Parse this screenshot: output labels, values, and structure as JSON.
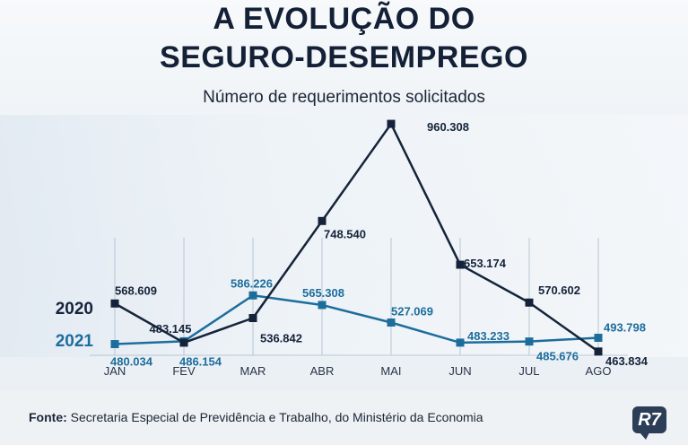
{
  "header": {
    "title_line1": "A EVOLUÇÃO DO",
    "title_line2": "SEGURO-DESEMPREGO",
    "subtitle": "Número de requerimentos solicitados"
  },
  "footer": {
    "source_label": "Fonte:",
    "source_text": "Secretaria Especial de Previdência e Trabalho, do Ministério da Economia",
    "logo_text": "R7"
  },
  "colors": {
    "series_2020": "#15233a",
    "series_2021": "#1d6d9c",
    "grid": "#b8c6d4"
  },
  "chart_data": {
    "type": "line",
    "title": "A EVOLUÇÃO DO SEGURO-DESEMPREGO",
    "subtitle": "Número de requerimentos solicitados",
    "xlabel": "",
    "ylabel": "",
    "categories": [
      "JAN",
      "FEV",
      "MAR",
      "ABR",
      "MAI",
      "JUN",
      "JUL",
      "AGO"
    ],
    "ylim": [
      440000,
      980000
    ],
    "grid": "vertical",
    "series": [
      {
        "name": "2020",
        "values": [
          568609,
          483145,
          536842,
          748540,
          960308,
          653174,
          570602,
          463834
        ],
        "labels": [
          "568.609",
          "483.145",
          "536.842",
          "748.540",
          "960.308",
          "653.174",
          "570.602",
          "463.834"
        ]
      },
      {
        "name": "2021",
        "values": [
          480034,
          486154,
          586226,
          565308,
          527069,
          483233,
          485676,
          493798
        ],
        "labels": [
          "480.034",
          "486.154",
          "586.226",
          "565.308",
          "527.069",
          "483.233",
          "485.676",
          "493.798"
        ]
      }
    ]
  }
}
